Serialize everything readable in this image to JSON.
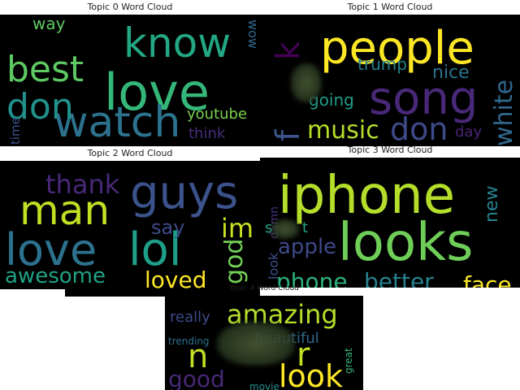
{
  "chart_data": [
    {
      "type": "wordcloud",
      "title": "Topic 0 Word Cloud",
      "words": [
        {
          "text": "love",
          "color": "#35b779"
        },
        {
          "text": "watch",
          "color": "#2c728e"
        },
        {
          "text": "know",
          "color": "#22a884"
        },
        {
          "text": "best",
          "color": "#5ec962"
        },
        {
          "text": "don",
          "color": "#21918c"
        },
        {
          "text": "youtube",
          "color": "#7ad151"
        },
        {
          "text": "way",
          "color": "#5ec962"
        },
        {
          "text": "wow",
          "color": "#31688e"
        },
        {
          "text": "think",
          "color": "#472d7b"
        },
        {
          "text": "time",
          "color": "#3b528b"
        }
      ]
    },
    {
      "type": "wordcloud",
      "title": "Topic 1 Word Cloud",
      "words": [
        {
          "text": "people",
          "color": "#fde725"
        },
        {
          "text": "song",
          "color": "#482878"
        },
        {
          "text": "don",
          "color": "#3e4a89"
        },
        {
          "text": "music",
          "color": "#b5de2b"
        },
        {
          "text": "white",
          "color": "#31688e"
        },
        {
          "text": "nice",
          "color": "#2c728e"
        },
        {
          "text": "trump",
          "color": "#26828e"
        },
        {
          "text": "going",
          "color": "#1f9e89"
        },
        {
          "text": "day",
          "color": "#482475"
        },
        {
          "text": "f",
          "color": "#3b528b"
        },
        {
          "text": "k",
          "color": "#440154"
        }
      ]
    },
    {
      "type": "wordcloud",
      "title": "Topic 2 Word Cloud",
      "words": [
        {
          "text": "guys",
          "color": "#3b528b"
        },
        {
          "text": "man",
          "color": "#c2df23"
        },
        {
          "text": "love",
          "color": "#2c728e"
        },
        {
          "text": "lol",
          "color": "#1f9e89"
        },
        {
          "text": "awesome",
          "color": "#20a386"
        },
        {
          "text": "loved",
          "color": "#fde725"
        },
        {
          "text": "thank",
          "color": "#482878"
        },
        {
          "text": "say",
          "color": "#3e4a89"
        },
        {
          "text": "im",
          "color": "#c8e020"
        },
        {
          "text": "god",
          "color": "#73d056"
        }
      ]
    },
    {
      "type": "wordcloud",
      "title": "Topic 3 Word Cloud",
      "words": [
        {
          "text": "iphone",
          "color": "#b5de2b"
        },
        {
          "text": "looks",
          "color": "#6ece58"
        },
        {
          "text": "phone",
          "color": "#2db27d"
        },
        {
          "text": "better",
          "color": "#26828e"
        },
        {
          "text": "face",
          "color": "#fde725"
        },
        {
          "text": "apple",
          "color": "#3e4a89"
        },
        {
          "text": "new",
          "color": "#26828e"
        },
        {
          "text": "damn",
          "color": "#46337e"
        },
        {
          "text": "s",
          "color": "#22a884"
        },
        {
          "text": "t",
          "color": "#22a884"
        },
        {
          "text": "look",
          "color": "#3b528b"
        }
      ]
    },
    {
      "type": "wordcloud",
      "title": "Topic 4 Word Cloud",
      "words": [
        {
          "text": "amazing",
          "color": "#b5de2b"
        },
        {
          "text": "look",
          "color": "#fde725"
        },
        {
          "text": "good",
          "color": "#482878"
        },
        {
          "text": "n",
          "color": "#c2df23"
        },
        {
          "text": "r",
          "color": "#c2df23"
        },
        {
          "text": "really",
          "color": "#3e4a89"
        },
        {
          "text": "beautiful",
          "color": "#31688e"
        },
        {
          "text": "trending",
          "color": "#2c728e"
        },
        {
          "text": "great",
          "color": "#35b779"
        },
        {
          "text": "movie",
          "color": "#21918c"
        }
      ]
    }
  ]
}
